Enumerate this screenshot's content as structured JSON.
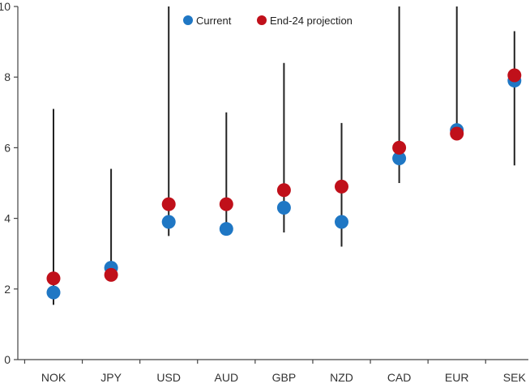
{
  "chart_data": {
    "type": "scatter",
    "categories": [
      "NOK",
      "JPY",
      "USD",
      "AUD",
      "GBP",
      "NZD",
      "CAD",
      "EUR",
      "SEK"
    ],
    "ylim": [
      0,
      10
    ],
    "yticks": [
      "0",
      "2",
      "4",
      "6",
      "8",
      "10"
    ],
    "grid": false,
    "legend_position": "top-center",
    "range": {
      "low": [
        1.55,
        2.5,
        3.5,
        3.8,
        3.6,
        3.2,
        5.0,
        6.3,
        5.5
      ],
      "high": [
        7.1,
        5.4,
        10.0,
        7.0,
        8.4,
        6.7,
        10.0,
        10.0,
        9.3
      ]
    },
    "series": [
      {
        "name": "Current",
        "color": "#1f77c4",
        "values": [
          1.9,
          2.6,
          3.9,
          3.7,
          4.3,
          3.9,
          5.7,
          6.5,
          7.9
        ]
      },
      {
        "name": "End-24 projection",
        "color": "#c0101a",
        "values": [
          2.3,
          2.4,
          4.4,
          4.4,
          4.8,
          4.9,
          6.0,
          6.4,
          8.05
        ]
      }
    ],
    "range_color": "#222222"
  }
}
